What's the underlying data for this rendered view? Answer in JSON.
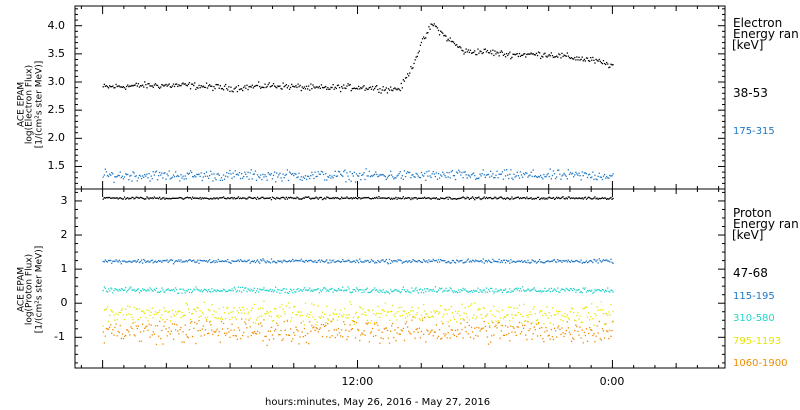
{
  "chart_data": [
    {
      "type": "scatter",
      "instrument_label": "ACE EPAM",
      "ylabel_line1": "log(Electron Flux)",
      "ylabel_line2": "[1/(cm²s ster MeV)]",
      "ylim": [
        1.1,
        4.35
      ],
      "yticks": [
        "1.5",
        "2.0",
        "2.5",
        "3.0",
        "3.5",
        "4.0"
      ],
      "legend_title": [
        "Electron",
        "Energy ran"
      ],
      "legend_unit": "[keV]",
      "series": [
        {
          "name": "38-53",
          "color": "#000000",
          "x": [
            0,
            2,
            4,
            6,
            8,
            10,
            12,
            13,
            13.5,
            14,
            14.5,
            15,
            15.5,
            16,
            16.5,
            17,
            18,
            19,
            20,
            21,
            22,
            23,
            24
          ],
          "y": [
            2.92,
            2.95,
            2.95,
            2.9,
            2.95,
            2.9,
            2.92,
            2.9,
            2.88,
            2.9,
            3.25,
            3.7,
            4.05,
            3.85,
            3.7,
            3.55,
            3.55,
            3.5,
            3.5,
            3.5,
            3.45,
            3.4,
            3.3
          ],
          "scatter": 0.05
        },
        {
          "name": "175-315",
          "color": "#1f77c4",
          "x": [
            0,
            24
          ],
          "y": [
            1.35,
            1.35
          ],
          "scatter": 0.08
        }
      ]
    },
    {
      "type": "scatter",
      "instrument_label": "ACE EPAM",
      "ylabel_line1": "log(Proton Flux)",
      "ylabel_line2": "[1/(cm²s ster MeV)]",
      "ylim": [
        -1.9,
        3.35
      ],
      "yticks": [
        "-1",
        "0",
        "1",
        "2",
        "3"
      ],
      "legend_title": [
        "Proton",
        "Energy ran"
      ],
      "legend_unit": "[keV]",
      "series": [
        {
          "name": "47-68",
          "color": "#000000",
          "x": [
            0,
            24
          ],
          "y": [
            3.1,
            3.1
          ],
          "scatter": 0.03
        },
        {
          "name": "115-195",
          "color": "#1f77c4",
          "x": [
            0,
            24
          ],
          "y": [
            1.25,
            1.25
          ],
          "scatter": 0.05
        },
        {
          "name": "310-580",
          "color": "#22d3c8",
          "x": [
            0,
            24
          ],
          "y": [
            0.4,
            0.4
          ],
          "scatter": 0.07
        },
        {
          "name": "795-1193",
          "color": "#e6e600",
          "x": [
            0,
            24
          ],
          "y": [
            -0.3,
            -0.3
          ],
          "scatter": 0.25
        },
        {
          "name": "1060-1900",
          "color": "#f08c00",
          "x": [
            0,
            24
          ],
          "y": [
            -0.8,
            -0.8
          ],
          "scatter": 0.3
        }
      ]
    }
  ],
  "x_axis": {
    "range_hours": [
      -1.3,
      29.3
    ],
    "major_ticks": [
      {
        "hour": 12,
        "label": "12:00"
      },
      {
        "hour": 24,
        "label": "0:00"
      }
    ],
    "xlabel": "hours:minutes, May 26, 2016 - May 27, 2016"
  }
}
